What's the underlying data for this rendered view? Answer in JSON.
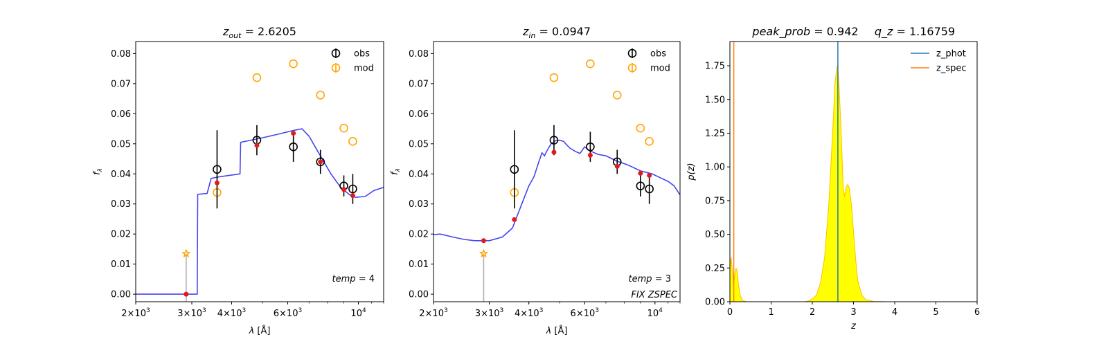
{
  "colors": {
    "model_line": "#3a3aee",
    "obs": "#000000",
    "mod": "#ffa500",
    "phot_point": "#e31a1c",
    "z_phot": "#1f77b4",
    "z_spec": "#ff7f0e",
    "pz_fill": "#ffff00",
    "pz_edge": "#ffbf00"
  },
  "chart_data": [
    {
      "type": "scatter",
      "title_var": "z",
      "title_sub": "out",
      "title_value": "= 2.6205",
      "xlabel": "λ [Å]",
      "ylabel": "f",
      "ylabel_sub": "λ",
      "xscale": "log",
      "xlim": [
        2000,
        12000
      ],
      "ylim": [
        -0.0025,
        0.084
      ],
      "x_tick_labels": [
        {
          "value": 2000,
          "base": "2×10",
          "exp": "3"
        },
        {
          "value": 3000,
          "base": "3×10",
          "exp": "3"
        },
        {
          "value": 4000,
          "base": "4×10",
          "exp": "3"
        },
        {
          "value": 6000,
          "base": "6×10",
          "exp": "3"
        },
        {
          "value": 10000,
          "base": "10",
          "exp": "4"
        }
      ],
      "y_tick_labels": [
        "0.00",
        "0.01",
        "0.02",
        "0.03",
        "0.04",
        "0.05",
        "0.06",
        "0.07",
        "0.08"
      ],
      "legend": [
        "obs",
        "mod"
      ],
      "legend_position": "top-right",
      "annotation_var": "temp",
      "annotation_value": "= 4",
      "annotation2": "",
      "obs": [
        {
          "x": 3600,
          "y": 0.0415,
          "err": 0.013
        },
        {
          "x": 4800,
          "y": 0.0512,
          "err": 0.005
        },
        {
          "x": 6250,
          "y": 0.049,
          "err": 0.005
        },
        {
          "x": 7600,
          "y": 0.044,
          "err": 0.004
        },
        {
          "x": 9000,
          "y": 0.036,
          "err": 0.0035
        },
        {
          "x": 9600,
          "y": 0.035,
          "err": 0.005
        }
      ],
      "mod": [
        {
          "x": 3600,
          "y": 0.0338
        },
        {
          "x": 4800,
          "y": 0.072
        },
        {
          "x": 6250,
          "y": 0.0766
        },
        {
          "x": 7600,
          "y": 0.0662
        },
        {
          "x": 9000,
          "y": 0.0552
        },
        {
          "x": 9600,
          "y": 0.0508
        }
      ],
      "phot_points": [
        {
          "x": 2880,
          "y": 0.0
        },
        {
          "x": 3600,
          "y": 0.037
        },
        {
          "x": 4800,
          "y": 0.0495
        },
        {
          "x": 6250,
          "y": 0.0535
        },
        {
          "x": 7600,
          "y": 0.044
        },
        {
          "x": 9000,
          "y": 0.0348
        },
        {
          "x": 9600,
          "y": 0.0328
        }
      ],
      "star": {
        "x": 2880,
        "y": 0.0135
      },
      "model_curve": [
        [
          2000,
          0.0
        ],
        [
          3120,
          0.0
        ],
        [
          3130,
          0.0332
        ],
        [
          3350,
          0.0335
        ],
        [
          3450,
          0.0385
        ],
        [
          3650,
          0.039
        ],
        [
          4250,
          0.04
        ],
        [
          4270,
          0.0505
        ],
        [
          4600,
          0.0512
        ],
        [
          5000,
          0.052
        ],
        [
          5600,
          0.0532
        ],
        [
          6300,
          0.0545
        ],
        [
          6650,
          0.055
        ],
        [
          7000,
          0.0525
        ],
        [
          7500,
          0.047
        ],
        [
          8200,
          0.04
        ],
        [
          8800,
          0.0355
        ],
        [
          9400,
          0.033
        ],
        [
          9800,
          0.0322
        ],
        [
          10500,
          0.0325
        ],
        [
          11200,
          0.0345
        ],
        [
          12000,
          0.0355
        ]
      ]
    },
    {
      "type": "scatter",
      "title_var": "z",
      "title_sub": "in",
      "title_value": "= 0.0947",
      "xlabel": "λ [Å]",
      "ylabel": "f",
      "ylabel_sub": "λ",
      "xscale": "log",
      "xlim": [
        2000,
        12000
      ],
      "ylim": [
        -0.0025,
        0.084
      ],
      "x_tick_labels": [
        {
          "value": 2000,
          "base": "2×10",
          "exp": "3"
        },
        {
          "value": 3000,
          "base": "3×10",
          "exp": "3"
        },
        {
          "value": 4000,
          "base": "4×10",
          "exp": "3"
        },
        {
          "value": 6000,
          "base": "6×10",
          "exp": "3"
        },
        {
          "value": 10000,
          "base": "10",
          "exp": "4"
        }
      ],
      "y_tick_labels": [
        "0.00",
        "0.01",
        "0.02",
        "0.03",
        "0.04",
        "0.05",
        "0.06",
        "0.07",
        "0.08"
      ],
      "legend": [
        "obs",
        "mod"
      ],
      "legend_position": "top-right",
      "annotation_var": "temp",
      "annotation_value": "= 3",
      "annotation2": "FIX ZSPEC",
      "obs": [
        {
          "x": 3600,
          "y": 0.0415,
          "err": 0.013
        },
        {
          "x": 4800,
          "y": 0.0512,
          "err": 0.005
        },
        {
          "x": 6250,
          "y": 0.049,
          "err": 0.005
        },
        {
          "x": 7600,
          "y": 0.044,
          "err": 0.004
        },
        {
          "x": 9000,
          "y": 0.036,
          "err": 0.0035
        },
        {
          "x": 9600,
          "y": 0.035,
          "err": 0.005
        }
      ],
      "mod": [
        {
          "x": 3600,
          "y": 0.0338
        },
        {
          "x": 4800,
          "y": 0.072
        },
        {
          "x": 6250,
          "y": 0.0766
        },
        {
          "x": 7600,
          "y": 0.0662
        },
        {
          "x": 9000,
          "y": 0.0552
        },
        {
          "x": 9600,
          "y": 0.0508
        }
      ],
      "phot_points": [
        {
          "x": 2880,
          "y": 0.0178
        },
        {
          "x": 3600,
          "y": 0.0248
        },
        {
          "x": 4800,
          "y": 0.0472
        },
        {
          "x": 6250,
          "y": 0.0462
        },
        {
          "x": 7600,
          "y": 0.0425
        },
        {
          "x": 9000,
          "y": 0.0402
        },
        {
          "x": 9600,
          "y": 0.0395
        }
      ],
      "star": {
        "x": 2880,
        "y": 0.0135
      },
      "model_curve": [
        [
          2000,
          0.0198
        ],
        [
          2100,
          0.02
        ],
        [
          2300,
          0.019
        ],
        [
          2500,
          0.0182
        ],
        [
          2700,
          0.0178
        ],
        [
          3000,
          0.0178
        ],
        [
          3300,
          0.019
        ],
        [
          3550,
          0.022
        ],
        [
          3800,
          0.03
        ],
        [
          4000,
          0.036
        ],
        [
          4150,
          0.039
        ],
        [
          4300,
          0.044
        ],
        [
          4400,
          0.047
        ],
        [
          4480,
          0.046
        ],
        [
          4550,
          0.0475
        ],
        [
          4700,
          0.05
        ],
        [
          4850,
          0.051
        ],
        [
          5000,
          0.0512
        ],
        [
          5150,
          0.0508
        ],
        [
          5250,
          0.0498
        ],
        [
          5400,
          0.0485
        ],
        [
          5600,
          0.0475
        ],
        [
          5800,
          0.0468
        ],
        [
          6000,
          0.049
        ],
        [
          6200,
          0.0478
        ],
        [
          6600,
          0.0465
        ],
        [
          7000,
          0.046
        ],
        [
          7600,
          0.0442
        ],
        [
          8200,
          0.043
        ],
        [
          9000,
          0.041
        ],
        [
          9800,
          0.04
        ],
        [
          10500,
          0.0385
        ],
        [
          11000,
          0.0375
        ],
        [
          11500,
          0.036
        ],
        [
          12000,
          0.033
        ]
      ]
    },
    {
      "type": "area",
      "title_left_var": "peak_prob",
      "title_left_value": "= 0.942",
      "title_right_var": "q_z",
      "title_right_value": "= 1.16759",
      "xlabel": "z",
      "ylabel": "p(z)",
      "xlim": [
        0,
        6
      ],
      "ylim": [
        0,
        1.93
      ],
      "x_tick_labels": [
        "0",
        "1",
        "2",
        "3",
        "4",
        "5",
        "6"
      ],
      "y_tick_labels": [
        "0.00",
        "0.25",
        "0.50",
        "0.75",
        "1.00",
        "1.25",
        "1.50",
        "1.75"
      ],
      "y_tick_values": [
        0,
        0.25,
        0.5,
        0.75,
        1.0,
        1.25,
        1.5,
        1.75
      ],
      "legend": [
        "z_phot",
        "z_spec"
      ],
      "legend_position": "top-right",
      "z_phot": 2.6205,
      "z_spec": 0.0947,
      "pz": [
        [
          0.0,
          0.25
        ],
        [
          0.03,
          0.33
        ],
        [
          0.06,
          0.22
        ],
        [
          0.09,
          0.12
        ],
        [
          0.12,
          0.2
        ],
        [
          0.15,
          0.25
        ],
        [
          0.18,
          0.22
        ],
        [
          0.21,
          0.12
        ],
        [
          0.25,
          0.05
        ],
        [
          0.3,
          0.01
        ],
        [
          0.4,
          0.0
        ],
        [
          1.8,
          0.0
        ],
        [
          1.9,
          0.005
        ],
        [
          2.0,
          0.02
        ],
        [
          2.1,
          0.05
        ],
        [
          2.2,
          0.14
        ],
        [
          2.3,
          0.33
        ],
        [
          2.4,
          0.72
        ],
        [
          2.5,
          1.3
        ],
        [
          2.55,
          1.62
        ],
        [
          2.6,
          1.75
        ],
        [
          2.62,
          1.73
        ],
        [
          2.65,
          1.6
        ],
        [
          2.7,
          1.25
        ],
        [
          2.75,
          0.85
        ],
        [
          2.78,
          0.78
        ],
        [
          2.82,
          0.85
        ],
        [
          2.86,
          0.87
        ],
        [
          2.9,
          0.84
        ],
        [
          2.95,
          0.72
        ],
        [
          3.0,
          0.52
        ],
        [
          3.05,
          0.32
        ],
        [
          3.1,
          0.16
        ],
        [
          3.2,
          0.05
        ],
        [
          3.3,
          0.015
        ],
        [
          3.5,
          0.002
        ],
        [
          3.8,
          0.0
        ],
        [
          5.0,
          0.0
        ]
      ]
    }
  ]
}
